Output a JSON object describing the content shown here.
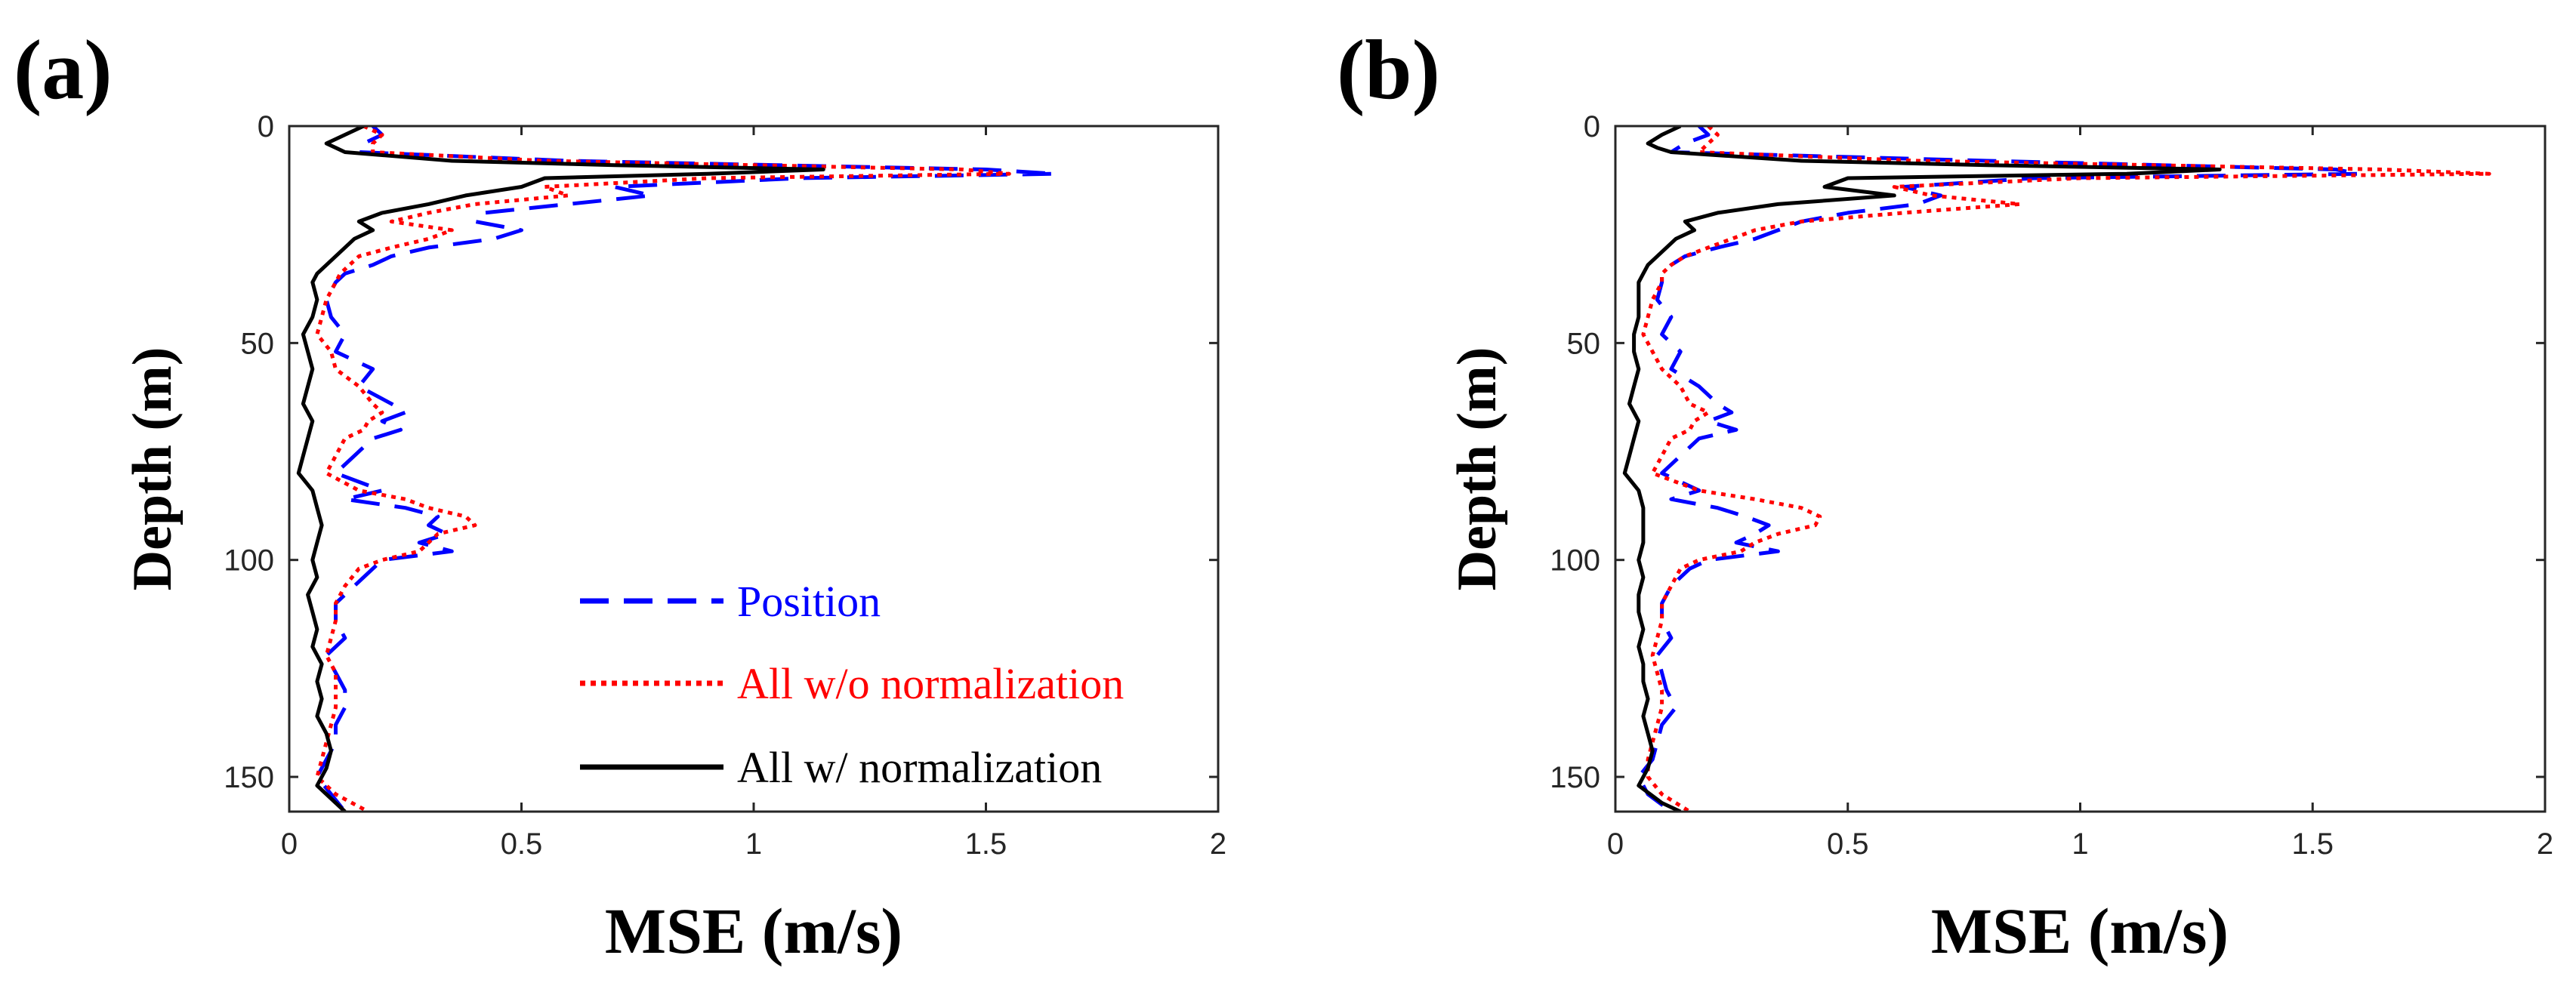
{
  "chart_data": [
    {
      "type": "line",
      "panel_label": "(a)",
      "xlabel": "MSE (m/s)",
      "ylabel": "Depth (m)",
      "xlim": [
        0,
        2
      ],
      "ylim": [
        0,
        158
      ],
      "y_reversed": true,
      "x_ticks": [
        {
          "v": 0,
          "label": "0"
        },
        {
          "v": 0.5,
          "label": "0.5"
        },
        {
          "v": 1,
          "label": "1"
        },
        {
          "v": 1.5,
          "label": "1.5"
        },
        {
          "v": 2,
          "label": "2"
        }
      ],
      "y_ticks": [
        {
          "v": 0,
          "label": "0"
        },
        {
          "v": 50,
          "label": "50"
        },
        {
          "v": 100,
          "label": "100"
        },
        {
          "v": 150,
          "label": "150"
        }
      ],
      "legend": {
        "position": "bottom-center"
      },
      "series": [
        {
          "name": "Position",
          "color": "#0000ff",
          "style": "dashed",
          "depth": [
            0,
            2,
            4,
            6,
            8,
            10,
            11,
            12,
            14,
            16,
            18,
            20,
            22,
            24,
            26,
            28,
            30,
            32,
            34,
            36,
            40,
            44,
            48,
            52,
            56,
            60,
            64,
            66,
            68,
            70,
            72,
            76,
            80,
            84,
            86,
            88,
            90,
            92,
            94,
            96,
            98,
            100,
            102,
            106,
            110,
            114,
            118,
            122,
            126,
            130,
            134,
            138,
            142,
            146,
            150,
            154,
            158
          ],
          "mse": [
            0.18,
            0.2,
            0.16,
            0.15,
            0.6,
            1.5,
            1.65,
            1.1,
            0.7,
            0.78,
            0.6,
            0.42,
            0.4,
            0.5,
            0.44,
            0.3,
            0.22,
            0.18,
            0.12,
            0.1,
            0.08,
            0.09,
            0.12,
            0.1,
            0.18,
            0.15,
            0.22,
            0.25,
            0.2,
            0.24,
            0.18,
            0.14,
            0.1,
            0.2,
            0.12,
            0.25,
            0.32,
            0.3,
            0.34,
            0.28,
            0.35,
            0.2,
            0.18,
            0.14,
            0.1,
            0.1,
            0.12,
            0.08,
            0.1,
            0.12,
            0.12,
            0.1,
            0.1,
            0.08,
            0.06,
            0.09,
            0.12
          ]
        },
        {
          "name": "All w/o normalization",
          "color": "#ff0000",
          "style": "dotted",
          "depth": [
            0,
            2,
            4,
            6,
            8,
            10,
            11,
            12,
            14,
            16,
            18,
            20,
            22,
            24,
            26,
            28,
            30,
            32,
            34,
            36,
            40,
            44,
            48,
            52,
            56,
            60,
            64,
            66,
            68,
            70,
            72,
            76,
            80,
            84,
            86,
            88,
            90,
            92,
            94,
            96,
            98,
            100,
            102,
            106,
            110,
            114,
            118,
            122,
            126,
            130,
            134,
            138,
            142,
            146,
            150,
            154,
            158
          ],
          "mse": [
            0.16,
            0.2,
            0.18,
            0.18,
            0.55,
            1.45,
            1.55,
            0.9,
            0.55,
            0.6,
            0.4,
            0.3,
            0.22,
            0.35,
            0.3,
            0.22,
            0.15,
            0.13,
            0.11,
            0.1,
            0.08,
            0.07,
            0.06,
            0.09,
            0.1,
            0.15,
            0.18,
            0.2,
            0.17,
            0.16,
            0.12,
            0.1,
            0.08,
            0.15,
            0.25,
            0.3,
            0.38,
            0.4,
            0.32,
            0.3,
            0.28,
            0.2,
            0.15,
            0.12,
            0.1,
            0.1,
            0.09,
            0.08,
            0.1,
            0.1,
            0.1,
            0.09,
            0.08,
            0.07,
            0.06,
            0.1,
            0.17
          ]
        },
        {
          "name": "All w/ normalization",
          "color": "#000000",
          "style": "solid",
          "depth": [
            0,
            2,
            4,
            5,
            6,
            8,
            9,
            10,
            11,
            12,
            14,
            16,
            18,
            20,
            22,
            24,
            26,
            28,
            30,
            32,
            34,
            36,
            40,
            44,
            48,
            52,
            56,
            60,
            64,
            68,
            72,
            76,
            80,
            84,
            88,
            92,
            96,
            100,
            104,
            108,
            112,
            116,
            120,
            124,
            128,
            132,
            136,
            140,
            144,
            148,
            152,
            156,
            158
          ],
          "mse": [
            0.16,
            0.12,
            0.08,
            0.1,
            0.12,
            0.35,
            0.7,
            1.15,
            0.9,
            0.55,
            0.5,
            0.38,
            0.3,
            0.2,
            0.15,
            0.18,
            0.14,
            0.12,
            0.1,
            0.08,
            0.06,
            0.05,
            0.06,
            0.05,
            0.03,
            0.04,
            0.05,
            0.04,
            0.03,
            0.05,
            0.04,
            0.03,
            0.02,
            0.05,
            0.06,
            0.07,
            0.06,
            0.05,
            0.06,
            0.04,
            0.05,
            0.06,
            0.05,
            0.07,
            0.06,
            0.07,
            0.06,
            0.08,
            0.09,
            0.08,
            0.06,
            0.1,
            0.12
          ]
        }
      ]
    },
    {
      "type": "line",
      "panel_label": "(b)",
      "xlabel": "MSE (m/s)",
      "ylabel": "Depth (m)",
      "xlim": [
        0,
        2
      ],
      "ylim": [
        0,
        158
      ],
      "y_reversed": true,
      "x_ticks": [
        {
          "v": 0,
          "label": "0"
        },
        {
          "v": 0.5,
          "label": "0.5"
        },
        {
          "v": 1,
          "label": "1"
        },
        {
          "v": 1.5,
          "label": "1.5"
        },
        {
          "v": 2,
          "label": "2"
        }
      ],
      "y_ticks": [
        {
          "v": 0,
          "label": "0"
        },
        {
          "v": 50,
          "label": "50"
        },
        {
          "v": 100,
          "label": "100"
        },
        {
          "v": 150,
          "label": "150"
        }
      ],
      "legend": null,
      "series": [
        {
          "name": "Position",
          "color": "#0000ff",
          "style": "dashed",
          "depth": [
            0,
            2,
            4,
            6,
            8,
            10,
            11,
            12,
            14,
            16,
            18,
            20,
            22,
            24,
            26,
            28,
            30,
            32,
            34,
            36,
            40,
            44,
            48,
            52,
            56,
            60,
            64,
            66,
            68,
            70,
            72,
            76,
            80,
            84,
            86,
            88,
            90,
            92,
            94,
            96,
            98,
            100,
            102,
            106,
            110,
            114,
            118,
            122,
            126,
            130,
            134,
            138,
            142,
            146,
            150,
            154,
            158
          ],
          "mse": [
            0.18,
            0.2,
            0.15,
            0.12,
            0.8,
            1.55,
            1.6,
            0.9,
            0.62,
            0.7,
            0.65,
            0.5,
            0.4,
            0.35,
            0.3,
            0.22,
            0.15,
            0.12,
            0.1,
            0.1,
            0.09,
            0.12,
            0.1,
            0.14,
            0.12,
            0.18,
            0.22,
            0.25,
            0.2,
            0.26,
            0.18,
            0.14,
            0.1,
            0.18,
            0.12,
            0.22,
            0.28,
            0.33,
            0.3,
            0.26,
            0.35,
            0.2,
            0.16,
            0.12,
            0.1,
            0.1,
            0.12,
            0.09,
            0.1,
            0.11,
            0.13,
            0.1,
            0.09,
            0.08,
            0.05,
            0.07,
            0.12
          ]
        },
        {
          "name": "All w/o normalization",
          "color": "#ff0000",
          "style": "dotted",
          "depth": [
            0,
            2,
            4,
            6,
            8,
            10,
            11,
            12,
            14,
            16,
            18,
            20,
            22,
            24,
            26,
            28,
            30,
            32,
            34,
            36,
            40,
            44,
            48,
            52,
            56,
            60,
            64,
            66,
            68,
            70,
            72,
            76,
            80,
            84,
            86,
            88,
            90,
            92,
            94,
            96,
            98,
            100,
            102,
            106,
            110,
            114,
            118,
            122,
            126,
            130,
            134,
            138,
            142,
            146,
            150,
            154,
            158
          ],
          "mse": [
            0.2,
            0.22,
            0.2,
            0.18,
            0.65,
            1.65,
            1.88,
            1.0,
            0.6,
            0.68,
            0.87,
            0.62,
            0.4,
            0.3,
            0.25,
            0.2,
            0.15,
            0.12,
            0.1,
            0.1,
            0.08,
            0.07,
            0.06,
            0.08,
            0.1,
            0.14,
            0.16,
            0.2,
            0.17,
            0.16,
            0.12,
            0.1,
            0.08,
            0.18,
            0.3,
            0.4,
            0.44,
            0.43,
            0.35,
            0.3,
            0.27,
            0.18,
            0.14,
            0.12,
            0.1,
            0.1,
            0.09,
            0.08,
            0.09,
            0.1,
            0.1,
            0.09,
            0.08,
            0.07,
            0.07,
            0.1,
            0.16
          ]
        },
        {
          "name": "All w/ normalization",
          "color": "#000000",
          "style": "solid",
          "depth": [
            0,
            2,
            4,
            5,
            6,
            8,
            9,
            10,
            11,
            12,
            14,
            16,
            18,
            20,
            22,
            24,
            26,
            28,
            30,
            32,
            34,
            36,
            40,
            44,
            48,
            52,
            56,
            60,
            64,
            68,
            72,
            76,
            80,
            84,
            88,
            92,
            96,
            100,
            104,
            108,
            112,
            116,
            120,
            124,
            128,
            132,
            136,
            140,
            144,
            148,
            152,
            156,
            158
          ],
          "mse": [
            0.14,
            0.1,
            0.07,
            0.09,
            0.12,
            0.4,
            0.8,
            1.3,
            1.1,
            0.5,
            0.45,
            0.6,
            0.35,
            0.22,
            0.15,
            0.17,
            0.13,
            0.11,
            0.09,
            0.07,
            0.06,
            0.05,
            0.05,
            0.05,
            0.04,
            0.04,
            0.05,
            0.04,
            0.03,
            0.05,
            0.04,
            0.03,
            0.02,
            0.05,
            0.06,
            0.06,
            0.06,
            0.05,
            0.06,
            0.05,
            0.05,
            0.06,
            0.05,
            0.06,
            0.06,
            0.07,
            0.06,
            0.07,
            0.08,
            0.07,
            0.05,
            0.1,
            0.14
          ]
        }
      ]
    }
  ]
}
